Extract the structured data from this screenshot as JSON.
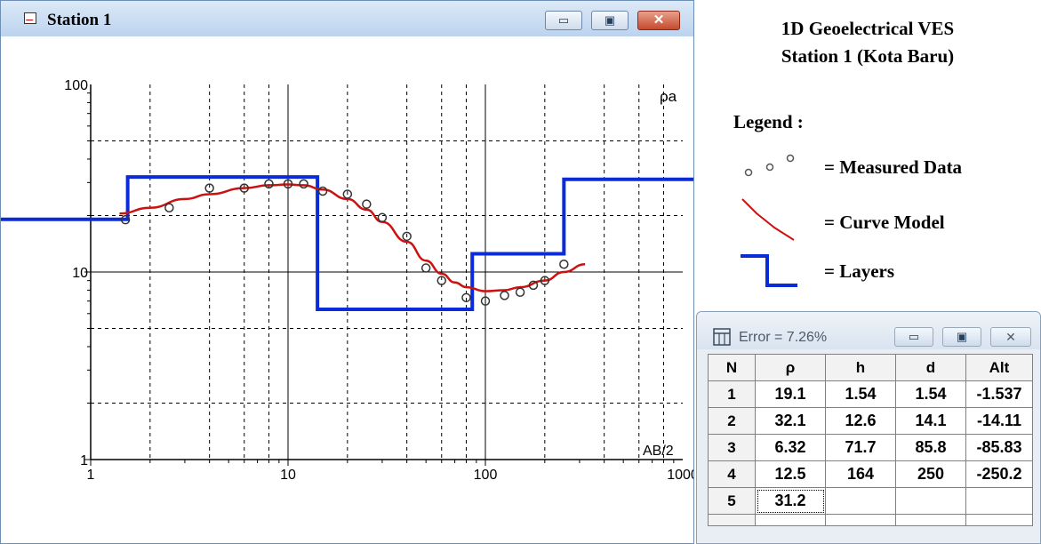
{
  "window": {
    "title": "Station 1",
    "minimize_glyph": "▭",
    "maximize_glyph": "▣",
    "close_glyph": "✕"
  },
  "chart_data": {
    "type": "line",
    "title": "",
    "xlabel": "AB/2",
    "ylabel": "ρa",
    "xscale": "log",
    "yscale": "log",
    "xlim": [
      1,
      1000
    ],
    "ylim": [
      1,
      100
    ],
    "x_ticks": [
      "1",
      "10",
      "100",
      "1000"
    ],
    "y_ticks": [
      "1",
      "10",
      "100"
    ],
    "grid": true,
    "measured_points": {
      "x": [
        1.5,
        2.5,
        4,
        6,
        8,
        10,
        12,
        15,
        20,
        25,
        30,
        40,
        50,
        60,
        80,
        100,
        125,
        150,
        175,
        200,
        250
      ],
      "y": [
        19,
        22,
        28,
        28,
        29.5,
        29.5,
        29.5,
        27,
        26,
        23,
        19.5,
        15.5,
        10.5,
        9,
        7.3,
        7,
        7.5,
        7.8,
        8.5,
        9,
        11
      ]
    },
    "curve_model": {
      "x": [
        1.4,
        2,
        3,
        4,
        6,
        8,
        10,
        12,
        15,
        20,
        25,
        30,
        40,
        50,
        60,
        70,
        80,
        100,
        125,
        150,
        200,
        250,
        320
      ],
      "y": [
        20.5,
        22,
        24.5,
        26,
        28,
        29,
        29.3,
        29,
        27.5,
        24.5,
        21.5,
        18.5,
        14.5,
        11.5,
        9.8,
        8.8,
        8.3,
        7.9,
        8,
        8.3,
        9,
        10,
        11
      ]
    },
    "layers": [
      {
        "rho": 19.1,
        "top_depth": 0,
        "bottom_depth": 1.54
      },
      {
        "rho": 32.1,
        "top_depth": 1.54,
        "bottom_depth": 14.1
      },
      {
        "rho": 6.32,
        "top_depth": 14.1,
        "bottom_depth": 85.8
      },
      {
        "rho": 12.5,
        "top_depth": 85.8,
        "bottom_depth": 250
      },
      {
        "rho": 31.2,
        "top_depth": 250,
        "bottom_depth": null
      }
    ],
    "colors": {
      "measured": "#333333",
      "curve": "#cc1111",
      "layers": "#0a2bd6",
      "grid": "#000000"
    }
  },
  "panel": {
    "heading_line1": "1D Geoelectrical VES",
    "heading_line2": "Station 1 (Kota Baru)",
    "legend_title": "Legend :",
    "legend_measured": "= Measured  Data",
    "legend_curve": "= Curve Model",
    "legend_layers": "= Layers"
  },
  "table_window": {
    "title": "Error = 7.26%",
    "columns": [
      "N",
      "ρ",
      "h",
      "d",
      "Alt"
    ],
    "rows": [
      [
        "1",
        "19.1",
        "1.54",
        "1.54",
        "-1.537"
      ],
      [
        "2",
        "32.1",
        "12.6",
        "14.1",
        "-14.11"
      ],
      [
        "3",
        "6.32",
        "71.7",
        "85.8",
        "-85.83"
      ],
      [
        "4",
        "12.5",
        "164",
        "250",
        "-250.2"
      ],
      [
        "5",
        "31.2",
        "",
        "",
        ""
      ]
    ]
  }
}
